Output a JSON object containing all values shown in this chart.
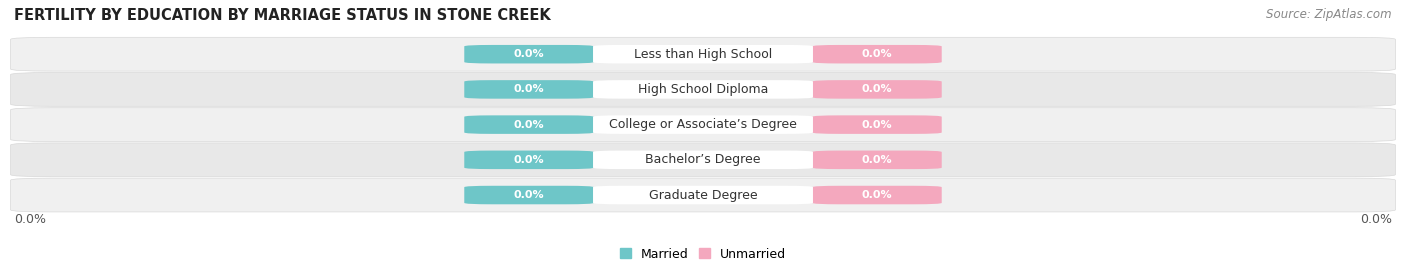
{
  "title": "FERTILITY BY EDUCATION BY MARRIAGE STATUS IN STONE CREEK",
  "source": "Source: ZipAtlas.com",
  "categories": [
    "Less than High School",
    "High School Diploma",
    "College or Associate’s Degree",
    "Bachelor’s Degree",
    "Graduate Degree"
  ],
  "married_values": [
    0.0,
    0.0,
    0.0,
    0.0,
    0.0
  ],
  "unmarried_values": [
    0.0,
    0.0,
    0.0,
    0.0,
    0.0
  ],
  "married_color": "#6ec6c8",
  "unmarried_color": "#f4a8be",
  "row_bg_even": "#f0f0f0",
  "row_bg_odd": "#e8e8e8",
  "row_border": "#d8d8d8",
  "label_box_color": "#ffffff",
  "x_left_label": "0.0%",
  "x_right_label": "0.0%",
  "title_fontsize": 10.5,
  "source_fontsize": 8.5,
  "value_fontsize": 8.0,
  "cat_fontsize": 9.0,
  "legend_married": "Married",
  "legend_unmarried": "Unmarried",
  "figwidth": 14.06,
  "figheight": 2.68,
  "dpi": 100
}
